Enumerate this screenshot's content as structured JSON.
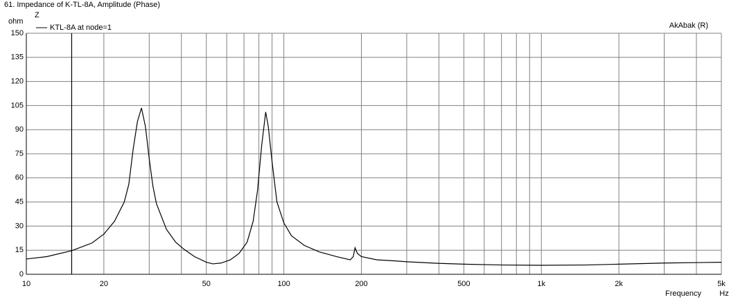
{
  "chart_data": {
    "type": "line",
    "title": "61. Impedance of K-TL-8A, Amplitude (Phase)",
    "y_unit": "ohm",
    "y_label": "Z",
    "brand": "AkAbak (R)",
    "x_label": "Frequency",
    "x_unit": "Hz",
    "x_scale": "log",
    "grid": true,
    "color": "#000000",
    "grid_color": "#808080",
    "cursor_x": 15,
    "x": [
      10,
      12,
      15,
      18,
      20,
      22,
      24,
      25,
      26,
      27,
      28,
      29,
      30,
      31,
      32,
      35,
      38,
      41,
      45,
      50,
      53,
      57,
      62,
      67,
      72,
      76,
      79,
      82,
      85,
      87,
      90,
      94,
      100,
      107,
      120,
      137,
      160,
      181,
      186,
      189,
      193,
      200,
      230,
      260,
      300,
      400,
      500,
      700,
      1000,
      1500,
      2000,
      3000,
      5000
    ],
    "series": [
      {
        "name": "KTL-8A at node=1",
        "color": "#000000",
        "values": [
          9.5,
          11,
          14.7,
          19.5,
          25,
          33,
          45,
          56,
          78,
          95,
          103.5,
          92,
          72,
          55,
          44,
          28,
          20,
          15.5,
          11,
          7.5,
          6.5,
          7,
          9,
          13,
          20,
          33,
          52,
          80,
          101,
          92,
          70,
          45,
          32,
          24,
          18,
          14,
          11,
          9,
          11,
          16.5,
          13,
          11,
          9,
          8.5,
          7.8,
          6.8,
          6.3,
          5.8,
          5.6,
          5.8,
          6.3,
          7,
          7.5
        ]
      }
    ],
    "xlim": [
      10,
      5000
    ],
    "xticks": [
      10,
      20,
      50,
      100,
      200,
      500,
      {
        "value": 1000,
        "label": "1k"
      },
      {
        "value": 2000,
        "label": "2k"
      },
      {
        "value": 5000,
        "label": "5k"
      }
    ],
    "minor_xticks": [
      30,
      40,
      60,
      70,
      80,
      90,
      300,
      400,
      600,
      700,
      800,
      900,
      3000,
      4000
    ],
    "ylim": [
      0,
      150
    ],
    "yticks": [
      0,
      15,
      30,
      45,
      60,
      75,
      90,
      105,
      120,
      135,
      150
    ]
  }
}
